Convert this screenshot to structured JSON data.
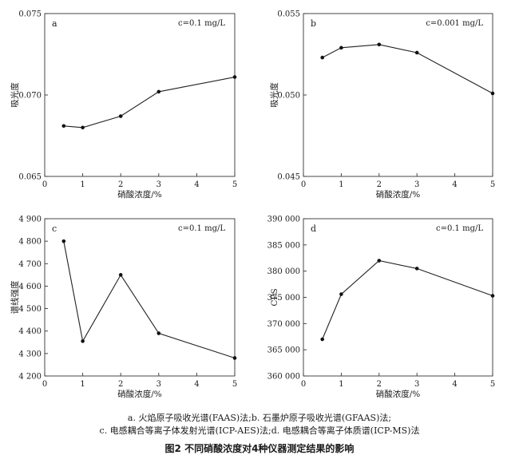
{
  "chart_data": [
    {
      "type": "line",
      "letter": "a",
      "annotation": "c=0.1 mg/L",
      "xlabel": "硝酸浓度/%",
      "ylabel": "吸光度",
      "xlim": [
        0,
        5
      ],
      "ylim": [
        0.065,
        0.075
      ],
      "xticks": [
        "0",
        "1",
        "2",
        "3",
        "4",
        "5"
      ],
      "yticks": [
        "0.065",
        "0.070",
        "0.075"
      ],
      "ytick_values": [
        0.065,
        0.07,
        0.075
      ],
      "x": [
        0.5,
        1,
        2,
        3,
        5
      ],
      "y": [
        0.0681,
        0.068,
        0.0687,
        0.0702,
        0.0711
      ]
    },
    {
      "type": "line",
      "letter": "b",
      "annotation": "c=0.001 mg/L",
      "xlabel": "硝酸浓度/%",
      "ylabel": "吸光度",
      "xlim": [
        0,
        5
      ],
      "ylim": [
        0.045,
        0.055
      ],
      "xticks": [
        "0",
        "1",
        "2",
        "3",
        "4",
        "5"
      ],
      "yticks": [
        "0.045",
        "0.050",
        "0.055"
      ],
      "ytick_values": [
        0.045,
        0.05,
        0.055
      ],
      "x": [
        0.5,
        1,
        2,
        3,
        5
      ],
      "y": [
        0.0523,
        0.0529,
        0.0531,
        0.0526,
        0.0501
      ]
    },
    {
      "type": "line",
      "letter": "c",
      "annotation": "c=0.1 mg/L",
      "xlabel": "硝酸浓度/%",
      "ylabel": "谱线强度",
      "xlim": [
        0,
        5
      ],
      "ylim": [
        4200,
        4900
      ],
      "xticks": [
        "0",
        "1",
        "2",
        "3",
        "4",
        "5"
      ],
      "yticks": [
        "4 200",
        "4 300",
        "4 400",
        "4 500",
        "4 600",
        "4 700",
        "4 800",
        "4 900"
      ],
      "ytick_values": [
        4200,
        4300,
        4400,
        4500,
        4600,
        4700,
        4800,
        4900
      ],
      "x": [
        0.5,
        1,
        2,
        3,
        5
      ],
      "y": [
        4800,
        4355,
        4650,
        4390,
        4280
      ]
    },
    {
      "type": "line",
      "letter": "d",
      "annotation": "c=0.1 mg/L",
      "xlabel": "硝酸浓度/%",
      "ylabel": "CPS",
      "xlim": [
        0,
        5
      ],
      "ylim": [
        360000,
        390000
      ],
      "xticks": [
        "0",
        "1",
        "2",
        "3",
        "4",
        "5"
      ],
      "yticks": [
        "360 000",
        "365 000",
        "370 000",
        "375 000",
        "380 000",
        "385 000",
        "390 000"
      ],
      "ytick_values": [
        360000,
        365000,
        370000,
        375000,
        380000,
        385000,
        390000
      ],
      "x": [
        0.5,
        1,
        2,
        3,
        5
      ],
      "y": [
        367000,
        375600,
        382000,
        380500,
        375300
      ]
    }
  ],
  "caption_line1": "a. 火焰原子吸收光谱(FAAS)法;b. 石墨炉原子吸收光谱(GFAAS)法;",
  "caption_line2": "c. 电感耦合等离子体发射光谱(ICP-AES)法;d. 电感耦合等离子体质谱(ICP-MS)法",
  "figure_title": "图2  不同硝酸浓度对4种仪器测定结果的影响"
}
